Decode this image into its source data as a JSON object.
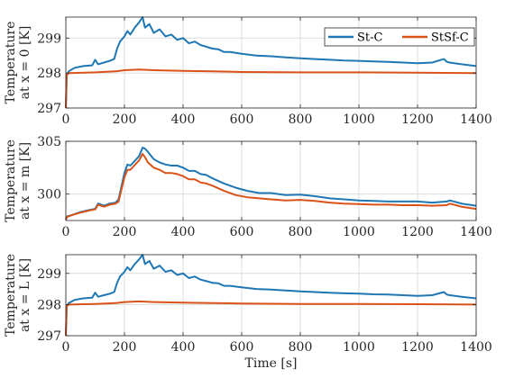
{
  "colors": {
    "st_c": "#1f77b4",
    "stsf_c": "#d95319",
    "grid": "#dcdcdc",
    "axis": "#262626"
  },
  "legend": {
    "placement": "top-right",
    "items": [
      "St-C",
      "StSf-C"
    ]
  },
  "chart_data": [
    {
      "type": "line",
      "ylabel_line1": "Temperature",
      "ylabel_line2": "at x = 0  [K]",
      "xlabel": "",
      "xlim": [
        0,
        1400
      ],
      "ylim": [
        297,
        299.6
      ],
      "xticks": [
        0,
        200,
        400,
        600,
        800,
        1000,
        1200,
        1400
      ],
      "yticks": [
        297,
        298,
        299
      ],
      "grid": true,
      "series": [
        {
          "name": "St-C",
          "x": [
            0,
            3,
            10,
            30,
            60,
            90,
            100,
            110,
            130,
            150,
            165,
            175,
            185,
            200,
            210,
            220,
            235,
            250,
            262,
            270,
            285,
            300,
            320,
            340,
            360,
            380,
            400,
            420,
            440,
            460,
            480,
            500,
            520,
            540,
            560,
            600,
            650,
            700,
            750,
            800,
            850,
            900,
            950,
            1000,
            1050,
            1100,
            1150,
            1200,
            1250,
            1290,
            1300,
            1310,
            1350,
            1400
          ],
          "y": [
            297.0,
            297.95,
            298.05,
            298.15,
            298.2,
            298.22,
            298.38,
            298.25,
            298.3,
            298.35,
            298.4,
            298.7,
            298.9,
            299.05,
            299.2,
            299.1,
            299.3,
            299.45,
            299.6,
            299.3,
            299.4,
            299.15,
            299.25,
            299.05,
            299.1,
            298.95,
            299.0,
            298.85,
            298.9,
            298.8,
            298.75,
            298.7,
            298.68,
            298.6,
            298.6,
            298.55,
            298.5,
            298.48,
            298.45,
            298.42,
            298.4,
            298.38,
            298.36,
            298.35,
            298.33,
            298.32,
            298.3,
            298.28,
            298.3,
            298.4,
            298.32,
            298.3,
            298.25,
            298.2
          ]
        },
        {
          "name": "StSf-C",
          "x": [
            0,
            3,
            10,
            100,
            170,
            200,
            250,
            300,
            400,
            500,
            600,
            800,
            1000,
            1200,
            1400
          ],
          "y": [
            297.0,
            297.95,
            298.0,
            298.02,
            298.05,
            298.08,
            298.1,
            298.08,
            298.06,
            298.05,
            298.03,
            298.02,
            298.02,
            298.01,
            298.0
          ]
        }
      ]
    },
    {
      "type": "line",
      "ylabel_line1": "Temperature",
      "ylabel_line2": "at x = m  [K]",
      "xlabel": "",
      "xlim": [
        0,
        1400
      ],
      "ylim": [
        297.5,
        305
      ],
      "xticks": [
        0,
        200,
        400,
        600,
        800,
        1000,
        1200,
        1400
      ],
      "yticks": [
        300,
        305
      ],
      "grid": true,
      "series": [
        {
          "name": "St-C",
          "x": [
            0,
            5,
            20,
            50,
            80,
            100,
            110,
            130,
            150,
            170,
            180,
            200,
            210,
            220,
            230,
            250,
            262,
            270,
            280,
            300,
            320,
            340,
            360,
            380,
            400,
            420,
            440,
            460,
            480,
            500,
            540,
            580,
            620,
            660,
            700,
            750,
            800,
            850,
            900,
            950,
            1000,
            1050,
            1100,
            1150,
            1200,
            1250,
            1300,
            1310,
            1350,
            1400
          ],
          "y": [
            297.6,
            297.9,
            298.0,
            298.3,
            298.5,
            298.6,
            299.1,
            298.9,
            299.1,
            299.2,
            299.5,
            302.0,
            302.8,
            302.7,
            303.0,
            303.6,
            304.4,
            304.3,
            304.0,
            303.3,
            303.0,
            302.8,
            302.7,
            302.7,
            302.5,
            302.2,
            302.2,
            301.9,
            301.8,
            301.5,
            301.0,
            300.6,
            300.3,
            300.1,
            300.1,
            299.9,
            299.95,
            299.8,
            299.6,
            299.5,
            299.4,
            299.35,
            299.3,
            299.3,
            299.3,
            299.2,
            299.3,
            299.4,
            299.1,
            298.9
          ]
        },
        {
          "name": "StSf-C",
          "x": [
            0,
            5,
            20,
            50,
            80,
            100,
            110,
            130,
            150,
            170,
            180,
            200,
            210,
            220,
            230,
            250,
            262,
            270,
            280,
            300,
            320,
            340,
            360,
            380,
            400,
            420,
            440,
            460,
            480,
            500,
            540,
            580,
            620,
            660,
            700,
            750,
            800,
            850,
            900,
            950,
            1000,
            1050,
            1100,
            1150,
            1200,
            1250,
            1300,
            1310,
            1350,
            1400
          ],
          "y": [
            297.6,
            297.85,
            298.0,
            298.25,
            298.45,
            298.55,
            299.0,
            298.8,
            299.0,
            299.1,
            299.3,
            301.6,
            302.3,
            302.3,
            302.6,
            303.2,
            303.8,
            303.5,
            303.0,
            302.5,
            302.3,
            302.0,
            302.0,
            301.9,
            301.7,
            301.4,
            301.4,
            301.1,
            301.0,
            300.8,
            300.3,
            299.9,
            299.7,
            299.6,
            299.5,
            299.4,
            299.45,
            299.35,
            299.2,
            299.1,
            299.05,
            299.0,
            299.0,
            298.95,
            298.95,
            298.9,
            298.95,
            299.1,
            298.8,
            298.6
          ]
        }
      ]
    },
    {
      "type": "line",
      "ylabel_line1": "Temperature",
      "ylabel_line2": "at x = L  [K]",
      "xlabel": "Time [s]",
      "xlim": [
        0,
        1400
      ],
      "ylim": [
        297,
        299.6
      ],
      "xticks": [
        0,
        200,
        400,
        600,
        800,
        1000,
        1200,
        1400
      ],
      "yticks": [
        297,
        298,
        299
      ],
      "grid": true,
      "series": [
        {
          "name": "St-C",
          "x": [
            0,
            3,
            10,
            30,
            60,
            90,
            100,
            110,
            130,
            150,
            165,
            175,
            185,
            200,
            210,
            220,
            235,
            250,
            262,
            270,
            285,
            300,
            320,
            340,
            360,
            380,
            400,
            420,
            440,
            460,
            480,
            500,
            520,
            540,
            560,
            600,
            650,
            700,
            750,
            800,
            850,
            900,
            950,
            1000,
            1050,
            1100,
            1150,
            1200,
            1250,
            1290,
            1300,
            1310,
            1350,
            1400
          ],
          "y": [
            297.0,
            297.95,
            298.05,
            298.15,
            298.2,
            298.22,
            298.38,
            298.25,
            298.3,
            298.35,
            298.4,
            298.7,
            298.9,
            299.05,
            299.2,
            299.1,
            299.3,
            299.45,
            299.6,
            299.3,
            299.4,
            299.15,
            299.25,
            299.05,
            299.1,
            298.95,
            299.0,
            298.85,
            298.9,
            298.8,
            298.75,
            298.7,
            298.68,
            298.6,
            298.6,
            298.55,
            298.5,
            298.48,
            298.45,
            298.42,
            298.4,
            298.38,
            298.36,
            298.35,
            298.33,
            298.32,
            298.3,
            298.28,
            298.3,
            298.4,
            298.32,
            298.3,
            298.25,
            298.2
          ]
        },
        {
          "name": "StSf-C",
          "x": [
            0,
            3,
            10,
            100,
            170,
            200,
            250,
            300,
            400,
            500,
            600,
            800,
            1000,
            1200,
            1400
          ],
          "y": [
            297.0,
            297.95,
            298.0,
            298.02,
            298.05,
            298.08,
            298.1,
            298.08,
            298.06,
            298.05,
            298.03,
            298.02,
            298.02,
            298.01,
            298.0
          ]
        }
      ]
    }
  ]
}
